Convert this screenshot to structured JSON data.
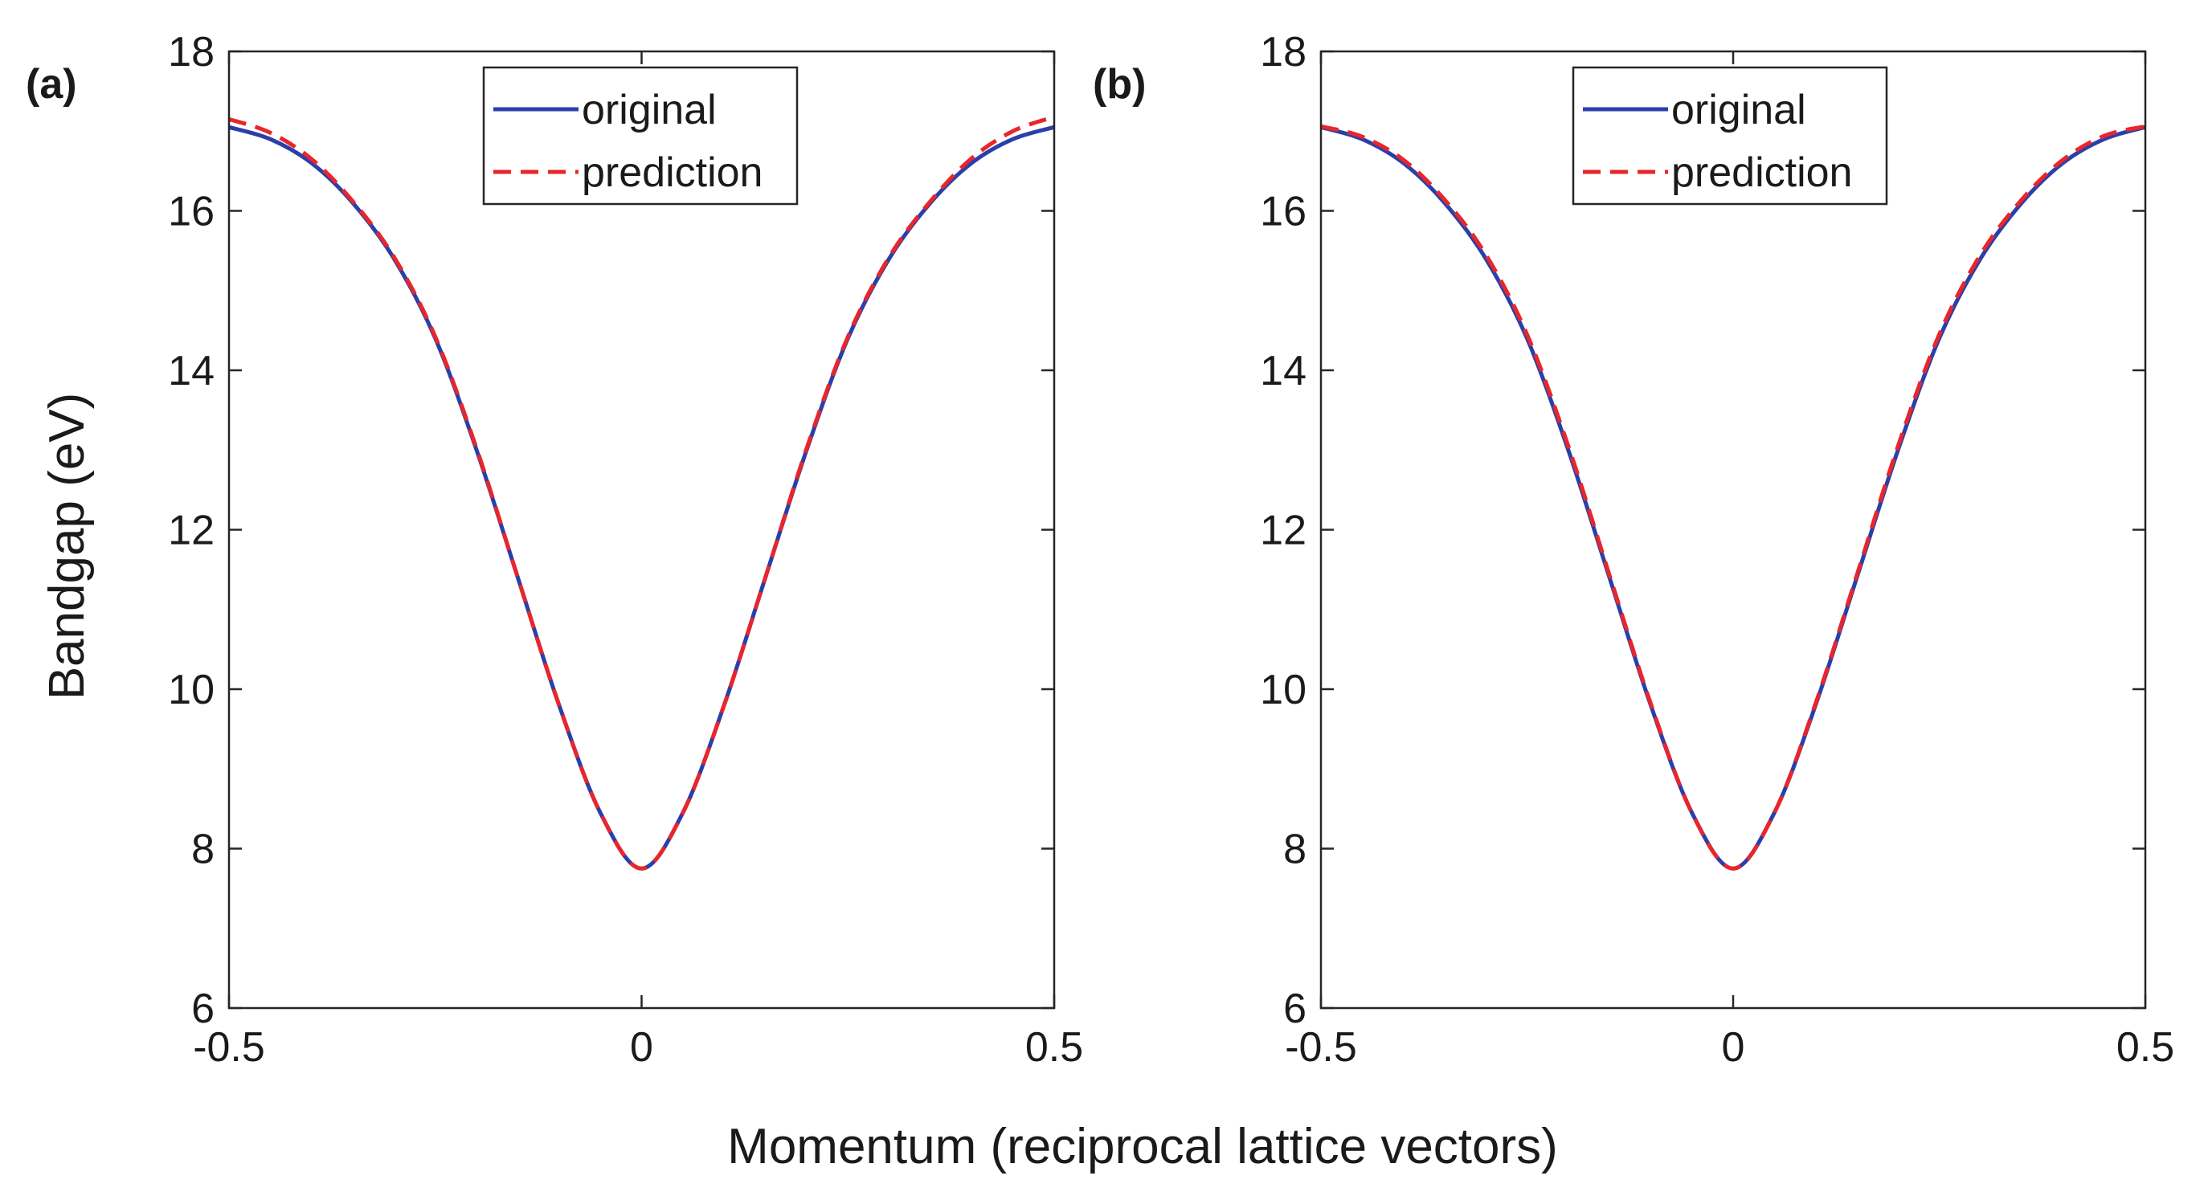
{
  "chart_data": {
    "shared": {
      "xlabel": "Momentum (reciprocal lattice vectors)",
      "ylabel": "Bandgap (eV)",
      "xlim": [
        -0.5,
        0.5
      ],
      "ylim": [
        6,
        18
      ],
      "xticks": [
        -0.5,
        0,
        0.5
      ],
      "xtick_labels": [
        "-0.5",
        "0",
        "0.5"
      ],
      "yticks": [
        6,
        8,
        10,
        12,
        14,
        16,
        18
      ],
      "ytick_labels": [
        "6",
        "8",
        "10",
        "12",
        "14",
        "16",
        "18"
      ],
      "legend_position": "top-right",
      "colors": {
        "original": "#2b3fa8",
        "prediction": "#e8262b"
      }
    },
    "panels": [
      {
        "type": "line",
        "label": "(a)",
        "x": [
          -0.5,
          -0.45,
          -0.4,
          -0.35,
          -0.3,
          -0.25,
          -0.2,
          -0.15,
          -0.1,
          -0.05,
          0,
          0.05,
          0.1,
          0.15,
          0.2,
          0.25,
          0.3,
          0.35,
          0.4,
          0.45,
          0.5
        ],
        "series": [
          {
            "name": "original",
            "style": "solid",
            "values": [
              17.05,
              16.9,
              16.6,
              16.1,
              15.4,
              14.4,
              13.0,
              11.4,
              9.8,
              8.45,
              7.75,
              8.45,
              9.8,
              11.4,
              13.0,
              14.4,
              15.4,
              16.1,
              16.6,
              16.9,
              17.05
            ]
          },
          {
            "name": "prediction",
            "style": "dashed",
            "values": [
              17.15,
              16.98,
              16.65,
              16.12,
              15.42,
              14.42,
              13.02,
              11.4,
              9.8,
              8.45,
              7.75,
              8.45,
              9.8,
              11.4,
              13.02,
              14.42,
              15.42,
              16.12,
              16.66,
              17.0,
              17.18
            ]
          }
        ]
      },
      {
        "type": "line",
        "label": "(b)",
        "x": [
          -0.5,
          -0.45,
          -0.4,
          -0.35,
          -0.3,
          -0.25,
          -0.2,
          -0.15,
          -0.1,
          -0.05,
          0,
          0.05,
          0.1,
          0.15,
          0.2,
          0.25,
          0.3,
          0.35,
          0.4,
          0.45,
          0.5
        ],
        "series": [
          {
            "name": "original",
            "style": "solid",
            "values": [
              17.05,
              16.9,
              16.6,
              16.1,
              15.4,
              14.4,
              13.0,
              11.4,
              9.8,
              8.45,
              7.75,
              8.45,
              9.8,
              11.4,
              13.0,
              14.4,
              15.4,
              16.1,
              16.6,
              16.9,
              17.05
            ]
          },
          {
            "name": "prediction",
            "style": "dashed",
            "values": [
              17.06,
              16.93,
              16.64,
              16.14,
              15.45,
              14.45,
              13.05,
              11.43,
              9.82,
              8.45,
              7.75,
              8.45,
              9.82,
              11.43,
              13.05,
              14.45,
              15.45,
              16.14,
              16.64,
              16.94,
              17.06
            ]
          }
        ]
      }
    ]
  }
}
